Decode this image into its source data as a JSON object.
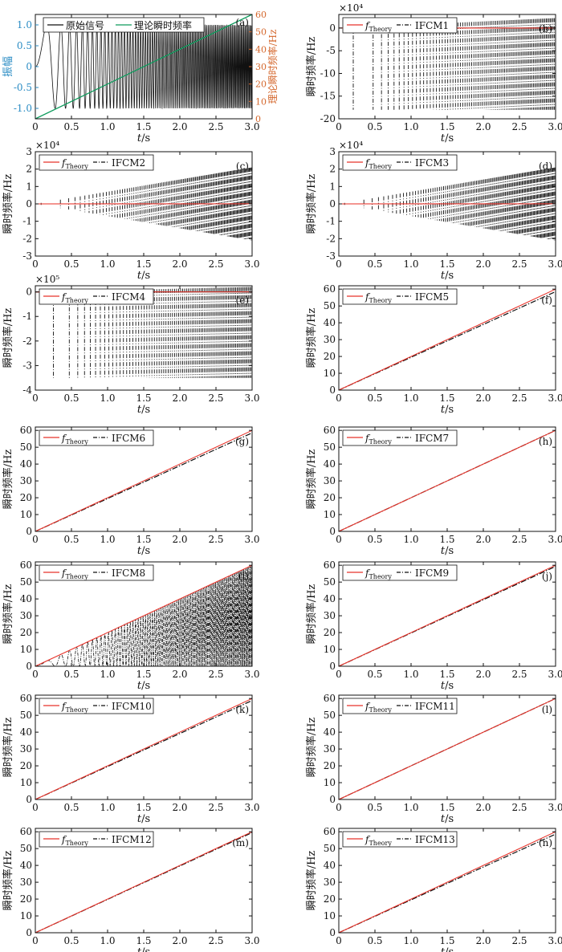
{
  "figure": {
    "colors": {
      "theory": "#e8332a",
      "ifcm": "#111111",
      "signal": "#111111",
      "freq_green": "#0d9b5c",
      "left_axis": "#2a8cc4",
      "right_axis": "#d4662b"
    }
  },
  "chart_data": [
    {
      "id": "a",
      "type": "line",
      "panel_label": "(a)",
      "xlabel_italic": "t",
      "xlabel_unit": "/s",
      "ylabel": "振幅",
      "ylabel_right": "理论瞬时频率/Hz",
      "xlim": [
        0,
        3
      ],
      "ylim": [
        -1.25,
        1.25
      ],
      "ylim_right": [
        0,
        60
      ],
      "xticks": [
        0,
        0.5,
        1.0,
        1.5,
        2.0,
        2.5,
        3.0
      ],
      "xtick_labels": [
        "0",
        "0.5",
        "1.0",
        "1.5",
        "2.0",
        "2.5",
        "3.0"
      ],
      "yticks": [
        -1.0,
        -0.5,
        0,
        0.5,
        1.0
      ],
      "ytick_labels": [
        "-1.0",
        "-0.5",
        "0",
        "0.5",
        "1.0"
      ],
      "yticks_right": [
        0,
        10,
        20,
        30,
        40,
        50,
        60
      ],
      "ytick_labels_right": [
        "0",
        "10",
        "20",
        "30",
        "40",
        "50",
        "60"
      ],
      "legend": [
        "原始信号",
        "理论瞬时频率"
      ],
      "legend_loc": "top",
      "signal": "amplitude 1 chirp, frequency rising linearly with time",
      "theory_line": {
        "x": [
          0,
          3
        ],
        "y": [
          0,
          60
        ]
      }
    },
    {
      "id": "b",
      "type": "line",
      "panel_label": "(b)",
      "exponent": "×10⁴",
      "xlabel_italic": "t",
      "xlabel_unit": "/s",
      "ylabel": "瞬时频率/Hz",
      "xlim": [
        0,
        3
      ],
      "ylim": [
        -20,
        3
      ],
      "xticks": [
        0,
        0.5,
        1.0,
        1.5,
        2.0,
        2.5,
        3.0
      ],
      "xtick_labels": [
        "0",
        "0.5",
        "1.0",
        "1.5",
        "2.0",
        "2.5",
        "3.0"
      ],
      "yticks": [
        -20,
        -15,
        -10,
        -5,
        0
      ],
      "ytick_labels": [
        "-20",
        "-15",
        "-10",
        "-5",
        "0"
      ],
      "legend": [
        "Theory",
        "IFCM1"
      ],
      "legend_loc": "top-left",
      "theory_line": {
        "x": [
          0,
          3
        ],
        "y": [
          0,
          0.006
        ]
      },
      "ifcm_pattern": "spikes",
      "spike_max": 2.2,
      "spike_min": -18,
      "spike_start": 0.2
    },
    {
      "id": "c",
      "type": "line",
      "panel_label": "(c)",
      "exponent": "×10⁴",
      "xlabel_italic": "t",
      "xlabel_unit": "/s",
      "ylabel": "瞬时频率/Hz",
      "xlim": [
        0,
        3
      ],
      "ylim": [
        -3,
        3
      ],
      "xticks": [
        0,
        0.5,
        1.0,
        1.5,
        2.0,
        2.5,
        3.0
      ],
      "xtick_labels": [
        "0",
        "0.5",
        "1.0",
        "1.5",
        "2.0",
        "2.5",
        "3.0"
      ],
      "yticks": [
        -3,
        -2,
        -1,
        0,
        1,
        2,
        3
      ],
      "ytick_labels": [
        "-3",
        "-2",
        "-1",
        "0",
        "1",
        "2",
        "3"
      ],
      "legend": [
        "Theory",
        "IFCM2"
      ],
      "legend_loc": "top-left",
      "theory_line": {
        "x": [
          0,
          3
        ],
        "y": [
          0,
          0.006
        ]
      },
      "ifcm_pattern": "envelope",
      "envelope_end": 2.1
    },
    {
      "id": "d",
      "type": "line",
      "panel_label": "(d)",
      "exponent": "×10⁴",
      "xlabel_italic": "t",
      "xlabel_unit": "/s",
      "ylabel": "瞬时频率/Hz",
      "xlim": [
        0,
        3
      ],
      "ylim": [
        -3,
        3
      ],
      "xticks": [
        0,
        0.5,
        1.0,
        1.5,
        2.0,
        2.5,
        3.0
      ],
      "xtick_labels": [
        "0",
        "0.5",
        "1.0",
        "1.5",
        "2.0",
        "2.5",
        "3.0"
      ],
      "yticks": [
        -3,
        -2,
        -1,
        0,
        1,
        2,
        3
      ],
      "ytick_labels": [
        "-3",
        "-2",
        "-1",
        "0",
        "1",
        "2",
        "3"
      ],
      "legend": [
        "Theory",
        "IFCM3"
      ],
      "legend_loc": "top-left",
      "theory_line": {
        "x": [
          0,
          3
        ],
        "y": [
          0,
          0.006
        ]
      },
      "ifcm_pattern": "envelope",
      "envelope_end": 2.1
    },
    {
      "id": "e",
      "type": "line",
      "panel_label": "(e)",
      "exponent": "×10⁵",
      "xlabel_italic": "t",
      "xlabel_unit": "/s",
      "ylabel": "瞬时频率/Hz",
      "xlim": [
        0,
        3
      ],
      "ylim": [
        -4,
        0.25
      ],
      "xticks": [
        0,
        0.5,
        1.0,
        1.5,
        2.0,
        2.5,
        3.0
      ],
      "xtick_labels": [
        "0",
        "0.5",
        "1.0",
        "1.5",
        "2.0",
        "2.5",
        "3.0"
      ],
      "yticks": [
        -4,
        -3,
        -2,
        -1,
        0
      ],
      "ytick_labels": [
        "-4",
        "-3",
        "-2",
        "-1",
        "0"
      ],
      "legend": [
        "Theory",
        "IFCM4"
      ],
      "legend_loc": "top-left",
      "theory_line": {
        "x": [
          0,
          3
        ],
        "y": [
          0,
          0.0006
        ]
      },
      "ifcm_pattern": "spikes",
      "spike_max": 0.2,
      "spike_min": -3.5,
      "spike_start": 0.25
    },
    {
      "id": "f",
      "type": "line",
      "panel_label": "(f)",
      "xlabel_italic": "t",
      "xlabel_unit": "/s",
      "ylabel": "瞬时频率/Hz",
      "xlim": [
        0,
        3
      ],
      "ylim": [
        0,
        62
      ],
      "xticks": [
        0,
        0.5,
        1.0,
        1.5,
        2.0,
        2.5,
        3.0
      ],
      "xtick_labels": [
        "0",
        "0.5",
        "1.0",
        "1.5",
        "2.0",
        "2.5",
        "3.0"
      ],
      "yticks": [
        0,
        10,
        20,
        30,
        40,
        50,
        60
      ],
      "ytick_labels": [
        "0",
        "10",
        "20",
        "30",
        "40",
        "50",
        "60"
      ],
      "legend": [
        "Theory",
        "IFCM5"
      ],
      "legend_loc": "top-left",
      "theory_line": {
        "x": [
          0,
          3
        ],
        "y": [
          0,
          60
        ]
      },
      "ifcm_line": {
        "x": [
          0,
          3
        ],
        "y": [
          0,
          58.5
        ]
      }
    },
    {
      "id": "g",
      "type": "line",
      "panel_label": "(g)",
      "xlabel_italic": "t",
      "xlabel_unit": "/s",
      "ylabel": "瞬时频率/Hz",
      "xlim": [
        0,
        3
      ],
      "ylim": [
        0,
        62
      ],
      "xticks": [
        0,
        0.5,
        1.0,
        1.5,
        2.0,
        2.5,
        3.0
      ],
      "xtick_labels": [
        "0",
        "0.5",
        "1.0",
        "1.5",
        "2.0",
        "2.5",
        "3.0"
      ],
      "yticks": [
        0,
        10,
        20,
        30,
        40,
        50,
        60
      ],
      "ytick_labels": [
        "0",
        "10",
        "20",
        "30",
        "40",
        "50",
        "60"
      ],
      "legend": [
        "Theory",
        "IFCM6"
      ],
      "legend_loc": "top-left",
      "theory_line": {
        "x": [
          0,
          3
        ],
        "y": [
          0,
          60
        ]
      },
      "ifcm_line": {
        "x": [
          0,
          3
        ],
        "y": [
          0,
          58.5
        ]
      }
    },
    {
      "id": "h",
      "type": "line",
      "panel_label": "(h)",
      "xlabel_italic": "t",
      "xlabel_unit": "/s",
      "ylabel": "瞬时频率/Hz",
      "xlim": [
        0,
        3
      ],
      "ylim": [
        0,
        62
      ],
      "xticks": [
        0,
        0.5,
        1.0,
        1.5,
        2.0,
        2.5,
        3.0
      ],
      "xtick_labels": [
        "0",
        "0.5",
        "1.0",
        "1.5",
        "2.0",
        "2.5",
        "3.0"
      ],
      "yticks": [
        0,
        10,
        20,
        30,
        40,
        50,
        60
      ],
      "ytick_labels": [
        "0",
        "10",
        "20",
        "30",
        "40",
        "50",
        "60"
      ],
      "legend": [
        "Theory",
        "IFCM7"
      ],
      "legend_loc": "top-left",
      "theory_line": {
        "x": [
          0,
          3
        ],
        "y": [
          0,
          60
        ]
      },
      "ifcm_line": {
        "x": [
          0,
          3
        ],
        "y": [
          0,
          60
        ]
      }
    },
    {
      "id": "i",
      "type": "line",
      "panel_label": "(i)",
      "xlabel_italic": "t",
      "xlabel_unit": "/s",
      "ylabel": "瞬时频率/Hz",
      "xlim": [
        0,
        3
      ],
      "ylim": [
        0,
        62
      ],
      "xticks": [
        0,
        0.5,
        1.0,
        1.5,
        2.0,
        2.5,
        3.0
      ],
      "xtick_labels": [
        "0",
        "0.5",
        "1.0",
        "1.5",
        "2.0",
        "2.5",
        "3.0"
      ],
      "yticks": [
        0,
        10,
        20,
        30,
        40,
        50,
        60
      ],
      "ytick_labels": [
        "0",
        "10",
        "20",
        "30",
        "40",
        "50",
        "60"
      ],
      "legend": [
        "Theory",
        "IFCM8"
      ],
      "legend_loc": "top-left",
      "theory_line": {
        "x": [
          0,
          3
        ],
        "y": [
          0,
          60
        ]
      },
      "ifcm_pattern": "oscillate_below",
      "oscillation_floor": 0
    },
    {
      "id": "j",
      "type": "line",
      "panel_label": "(j)",
      "xlabel_italic": "t",
      "xlabel_unit": "/s",
      "ylabel": "瞬时频率/Hz",
      "xlim": [
        0,
        3
      ],
      "ylim": [
        0,
        62
      ],
      "xticks": [
        0,
        0.5,
        1.0,
        1.5,
        2.0,
        2.5,
        3.0
      ],
      "xtick_labels": [
        "0",
        "0.5",
        "1.0",
        "1.5",
        "2.0",
        "2.5",
        "3.0"
      ],
      "yticks": [
        0,
        10,
        20,
        30,
        40,
        50,
        60
      ],
      "ytick_labels": [
        "0",
        "10",
        "20",
        "30",
        "40",
        "50",
        "60"
      ],
      "legend": [
        "Theory",
        "IFCM9"
      ],
      "legend_loc": "top-left",
      "theory_line": {
        "x": [
          0,
          3
        ],
        "y": [
          0,
          60
        ]
      },
      "ifcm_line": {
        "x": [
          0,
          3
        ],
        "y": [
          0,
          59.3
        ]
      }
    },
    {
      "id": "k",
      "type": "line",
      "panel_label": "(k)",
      "xlabel_italic": "t",
      "xlabel_unit": "/s",
      "ylabel": "瞬时频率/Hz",
      "xlim": [
        0,
        3
      ],
      "ylim": [
        0,
        62
      ],
      "xticks": [
        0,
        0.5,
        1.0,
        1.5,
        2.0,
        2.5,
        3.0
      ],
      "xtick_labels": [
        "0",
        "0.5",
        "1.0",
        "1.5",
        "2.0",
        "2.5",
        "3.0"
      ],
      "yticks": [
        0,
        10,
        20,
        30,
        40,
        50,
        60
      ],
      "ytick_labels": [
        "0",
        "10",
        "20",
        "30",
        "40",
        "50",
        "60"
      ],
      "legend": [
        "Theory",
        "IFCM10"
      ],
      "legend_loc": "top-left",
      "theory_line": {
        "x": [
          0,
          3
        ],
        "y": [
          0,
          60
        ]
      },
      "ifcm_line": {
        "x": [
          0,
          3
        ],
        "y": [
          0,
          58.8
        ]
      }
    },
    {
      "id": "l",
      "type": "line",
      "panel_label": "(l)",
      "xlabel_italic": "t",
      "xlabel_unit": "/s",
      "ylabel": "瞬时频率/Hz",
      "xlim": [
        0,
        3
      ],
      "ylim": [
        0,
        62
      ],
      "xticks": [
        0,
        0.5,
        1.0,
        1.5,
        2.0,
        2.5,
        3.0
      ],
      "xtick_labels": [
        "0",
        "0.5",
        "1.0",
        "1.5",
        "2.0",
        "2.5",
        "3.0"
      ],
      "yticks": [
        0,
        10,
        20,
        30,
        40,
        50,
        60
      ],
      "ytick_labels": [
        "0",
        "10",
        "20",
        "30",
        "40",
        "50",
        "60"
      ],
      "legend": [
        "Theory",
        "IFCM11"
      ],
      "legend_loc": "top-left",
      "theory_line": {
        "x": [
          0,
          3
        ],
        "y": [
          0,
          60
        ]
      },
      "ifcm_line": {
        "x": [
          0,
          3
        ],
        "y": [
          0,
          60
        ]
      }
    },
    {
      "id": "m",
      "type": "line",
      "panel_label": "(m)",
      "xlabel_italic": "t",
      "xlabel_unit": "/s",
      "ylabel": "瞬时频率/Hz",
      "xlim": [
        0,
        3
      ],
      "ylim": [
        0,
        62
      ],
      "xticks": [
        0,
        0.5,
        1.0,
        1.5,
        2.0,
        2.5,
        3.0
      ],
      "xtick_labels": [
        "0",
        "0.5",
        "1.0",
        "1.5",
        "2.0",
        "2.5",
        "3.0"
      ],
      "yticks": [
        0,
        10,
        20,
        30,
        40,
        50,
        60
      ],
      "ytick_labels": [
        "0",
        "10",
        "20",
        "30",
        "40",
        "50",
        "60"
      ],
      "legend": [
        "Theory",
        "IFCM12"
      ],
      "legend_loc": "top-left",
      "theory_line": {
        "x": [
          0,
          3
        ],
        "y": [
          0,
          60
        ]
      },
      "ifcm_line": {
        "x": [
          0,
          3
        ],
        "y": [
          0,
          59.5
        ]
      }
    },
    {
      "id": "n",
      "type": "line",
      "panel_label": "(n)",
      "xlabel_italic": "t",
      "xlabel_unit": "/s",
      "ylabel": "瞬时频率/Hz",
      "xlim": [
        0,
        3
      ],
      "ylim": [
        0,
        62
      ],
      "xticks": [
        0,
        0.5,
        1.0,
        1.5,
        2.0,
        2.5,
        3.0
      ],
      "xtick_labels": [
        "0",
        "0.5",
        "1.0",
        "1.5",
        "2.0",
        "2.5",
        "3.0"
      ],
      "yticks": [
        0,
        10,
        20,
        30,
        40,
        50,
        60
      ],
      "ytick_labels": [
        "0",
        "10",
        "20",
        "30",
        "40",
        "50",
        "60"
      ],
      "legend": [
        "Theory",
        "IFCM13"
      ],
      "legend_loc": "top-left",
      "theory_line": {
        "x": [
          0,
          3
        ],
        "y": [
          0,
          60
        ]
      },
      "ifcm_line": {
        "x": [
          0,
          3
        ],
        "y": [
          0,
          58.6
        ]
      }
    }
  ]
}
